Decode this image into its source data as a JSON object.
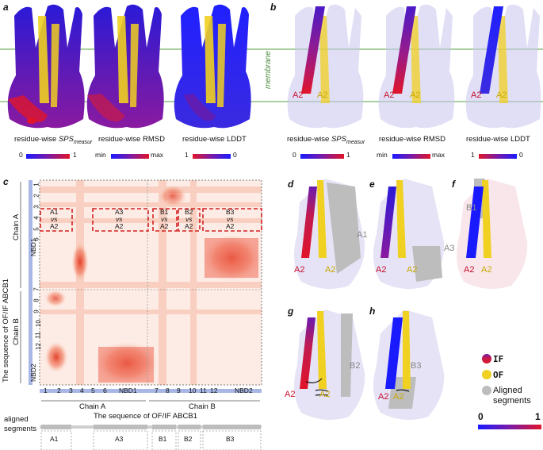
{
  "panels": {
    "a": "a",
    "b": "b",
    "c": "c",
    "d": "d",
    "e": "e",
    "f": "f",
    "g": "g",
    "h": "h"
  },
  "membrane_label": "membrane",
  "top_captions": [
    {
      "prefix": "residue-wise ",
      "italic": "SPS",
      "sub": "measur",
      "suffix": ""
    },
    {
      "prefix": "residue-wise RMSD",
      "italic": "",
      "sub": "",
      "suffix": ""
    },
    {
      "prefix": "residue-wise LDDT",
      "italic": "",
      "sub": "",
      "suffix": ""
    }
  ],
  "colorbars": [
    {
      "left": "0",
      "right": "1"
    },
    {
      "left": "min",
      "right": "max"
    },
    {
      "left": "1",
      "right": "0"
    }
  ],
  "helix_labels": {
    "a2_red": "A2",
    "a2_yellow": "A2"
  },
  "heatmap": {
    "y_axis_title": "The sequence of OF/IF ABCB1",
    "x_axis_title": "The sequence of OF/IF ABCB1",
    "chain_a": "Chain A",
    "chain_b": "Chain B",
    "nbd1": "NBD1",
    "nbd2": "NBD2",
    "x_ticks": [
      "1",
      "2",
      "3",
      "4",
      "5",
      "6",
      "NBD1",
      "7",
      "8",
      "9",
      "10",
      "11",
      "12",
      "NBD2"
    ],
    "y_ticks": [
      "1",
      "2",
      "3",
      "4",
      "5",
      "6",
      "7",
      "8",
      "9",
      "10",
      "11",
      "12"
    ],
    "boxes": [
      {
        "id": "A1",
        "l1": "A1",
        "l2": "vs",
        "l3": "A2"
      },
      {
        "id": "A3",
        "l1": "A3",
        "l2": "vs",
        "l3": "A2"
      },
      {
        "id": "B1",
        "l1": "B1",
        "l2": "vs",
        "l3": "A2"
      },
      {
        "id": "B2",
        "l1": "B2",
        "l2": "vs",
        "l3": "A2"
      },
      {
        "id": "B3",
        "l1": "B3",
        "l2": "vs",
        "l3": "A2"
      }
    ],
    "aligned_label_1": "aligned",
    "aligned_label_2": "segments",
    "segments": [
      "A1",
      "A3",
      "B1",
      "B2",
      "B3"
    ]
  },
  "structure_labels": {
    "d": "A1",
    "e": "A3",
    "f": "B1",
    "g": "B2",
    "h": "B3"
  },
  "legend": {
    "if": "IF",
    "of": "OF",
    "aligned": "Aligned",
    "segments": "segments",
    "min": "0",
    "max": "1"
  },
  "colors": {
    "blue": "#1a1aff",
    "purple": "#7a1aa8",
    "red": "#e0152a",
    "yellow": "#f0d020",
    "grey": "#bdbdbd",
    "membrane": "#8fbf7f"
  }
}
